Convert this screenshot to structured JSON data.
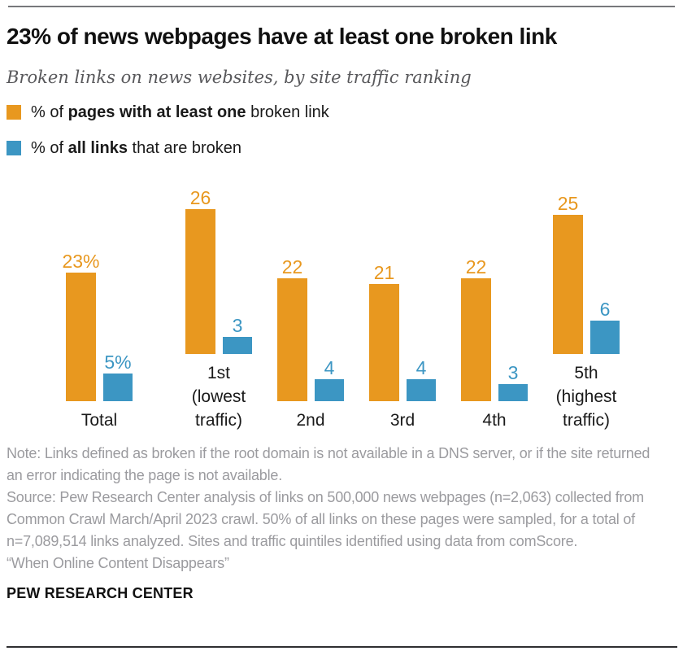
{
  "header": {
    "title": "23% of news webpages have at least one broken link",
    "subtitle": "Broken links on news websites, by site traffic ranking"
  },
  "legend": {
    "items": [
      {
        "color": "#e8981f",
        "prefix": "% of ",
        "bold": "pages with at least one",
        "suffix": " broken link"
      },
      {
        "color": "#3c96c3",
        "prefix": "% of ",
        "bold": "all links",
        "suffix": " that are broken"
      }
    ]
  },
  "chart_data": {
    "type": "bar",
    "title": "Broken links on news websites, by site traffic ranking",
    "categories": [
      "Total",
      "1st (lowest traffic)",
      "2nd",
      "3rd",
      "4th",
      "5th (highest traffic)"
    ],
    "category_lines": [
      [
        "Total"
      ],
      [
        "1st",
        "(lowest",
        "traffic)"
      ],
      [
        "2nd"
      ],
      [
        "3rd"
      ],
      [
        "4th"
      ],
      [
        "5th",
        "(highest",
        "traffic)"
      ]
    ],
    "series": [
      {
        "name": "% of pages with at least one broken link",
        "color": "#e8981f",
        "values": [
          23,
          26,
          22,
          21,
          22,
          25
        ],
        "labels": [
          "23%",
          "26",
          "22",
          "21",
          "22",
          "25"
        ]
      },
      {
        "name": "% of all links that are broken",
        "color": "#3c96c3",
        "values": [
          5,
          3,
          4,
          4,
          3,
          6
        ],
        "labels": [
          "5%",
          "3",
          "4",
          "4",
          "3",
          "6"
        ]
      }
    ],
    "xlabel": "",
    "ylabel": "",
    "ylim": [
      0,
      27
    ],
    "grid": false,
    "axis_lines": false,
    "legend_position": "top-left",
    "value_labels_shown": true
  },
  "footer": {
    "note": "Note: Links defined as broken if the root domain is not available in a DNS server, or if the site returned an error indicating the page is not available.",
    "source": "Source: Pew Research Center analysis of links on 500,000 news webpages (n=2,063) collected from Common Crawl March/April 2023 crawl. 50% of all links on these pages were sampled, for a total of n=7,089,514 links analyzed. Sites and traffic quintiles identified using data from comScore.",
    "report": "“When Online Content Disappears”",
    "brand": "PEW RESEARCH CENTER"
  }
}
